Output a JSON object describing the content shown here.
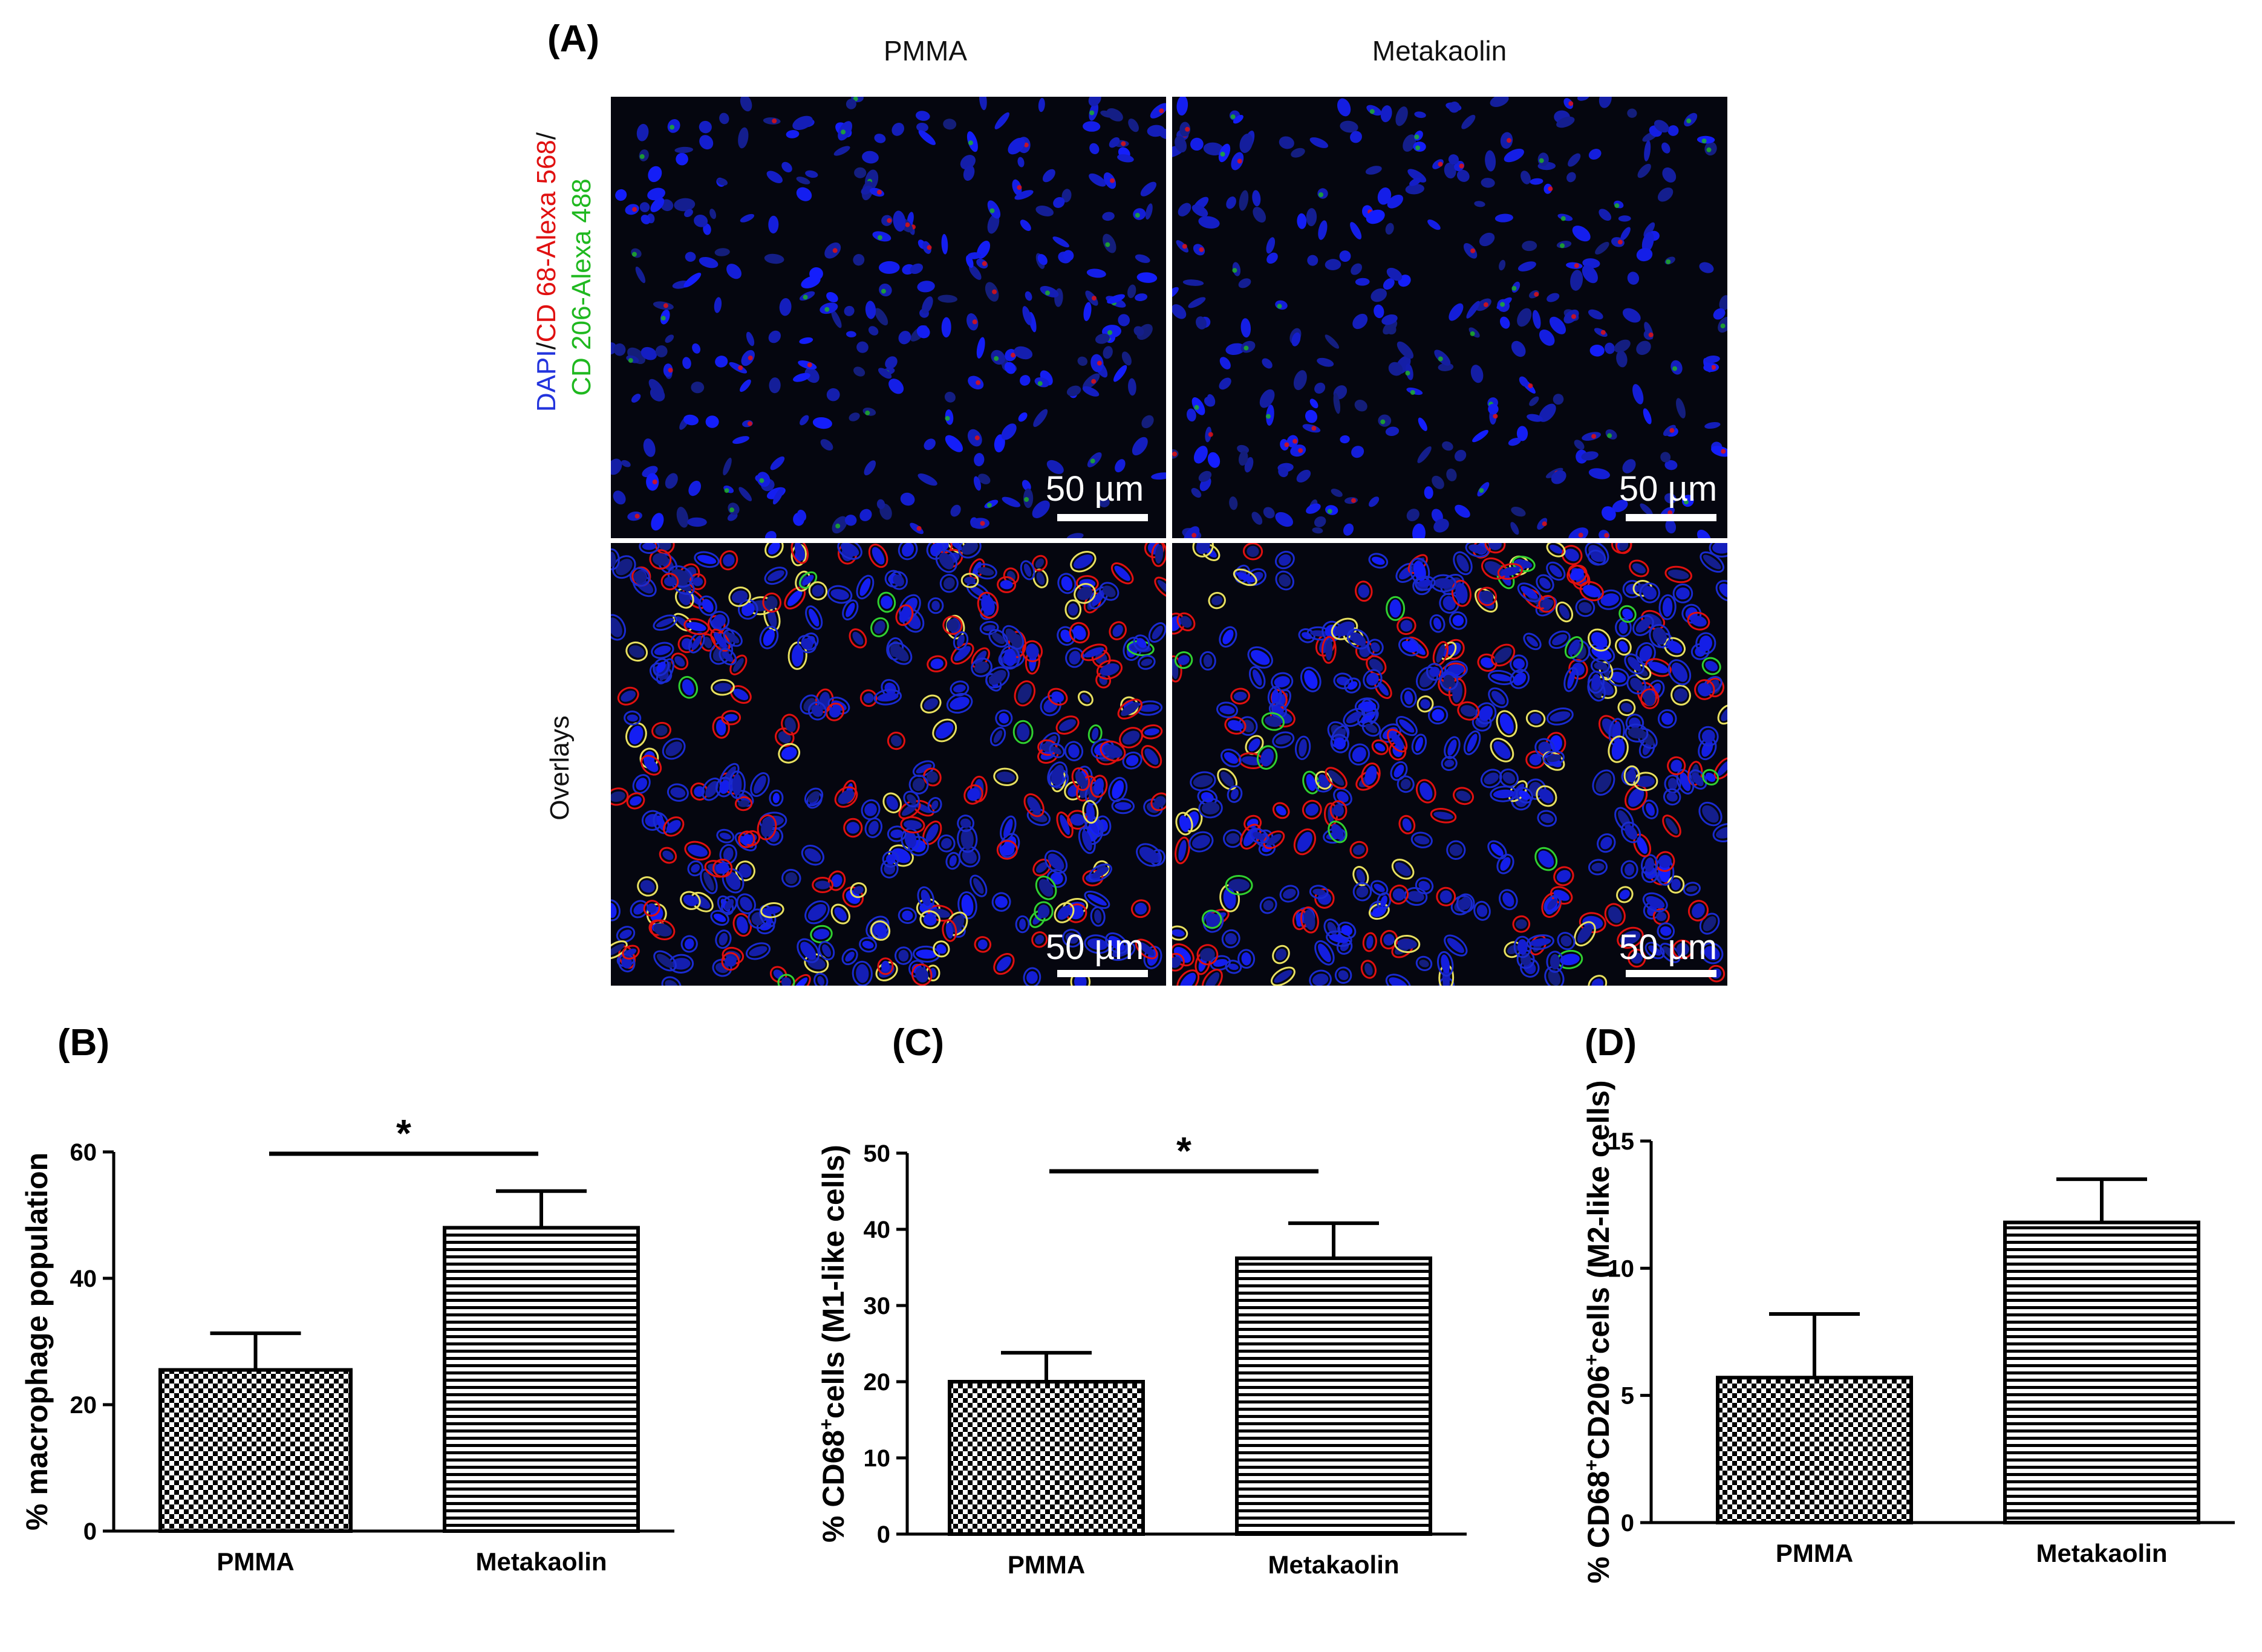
{
  "panel_a": {
    "letter": "(A)",
    "columns": [
      "PMMA",
      "Metakaolin"
    ],
    "row_labels": {
      "dapi": "DAPI",
      "sep1": "/",
      "cd68": "CD 68-Alexa 568",
      "sep2": "/",
      "cd206": "CD 206-Alexa 488",
      "overlays": "Overlays"
    },
    "scale_bar": "50 µm",
    "colors": {
      "dapi": "#2233dd",
      "cd68": "#e01010",
      "cd206": "#1fb81f",
      "overlay_yellow": "#e8e060",
      "overlay_green": "#30d030"
    }
  },
  "chart_data": [
    {
      "type": "bar",
      "panel": "(B)",
      "categories": [
        "PMMA",
        "Metakaolin"
      ],
      "values": [
        25.5,
        48
      ],
      "errors": [
        5.8,
        5.8
      ],
      "patterns": [
        "checkerboard",
        "horizontal-lines"
      ],
      "ylabel": "% macrophage population",
      "ylim": [
        0,
        60
      ],
      "yticks": [
        "0",
        "20",
        "40",
        "60"
      ],
      "significance": "*"
    },
    {
      "type": "bar",
      "panel": "(C)",
      "categories": [
        "PMMA",
        "Metakaolin"
      ],
      "values": [
        20,
        36.2
      ],
      "errors": [
        3.8,
        4.6
      ],
      "patterns": [
        "checkerboard",
        "horizontal-lines"
      ],
      "ylabel": {
        "main": "% CD68",
        "sup": "+",
        "rest": "cells (M1-like cells)"
      },
      "ylim": [
        0,
        50
      ],
      "yticks": [
        "0",
        "10",
        "20",
        "30",
        "40",
        "50"
      ],
      "significance": "*"
    },
    {
      "type": "bar",
      "panel": "(D)",
      "categories": [
        "PMMA",
        "Metakaolin"
      ],
      "values": [
        5.7,
        11.8
      ],
      "errors": [
        2.5,
        1.7
      ],
      "patterns": [
        "checkerboard",
        "horizontal-lines"
      ],
      "ylabel": {
        "main": "% CD68",
        "sup": "+",
        "mid": "CD206",
        "sup2": "+",
        "rest": "cells (M2-like cells)"
      },
      "ylim": [
        0,
        15
      ],
      "yticks": [
        "0",
        "5",
        "10",
        "15"
      ],
      "significance": ""
    }
  ]
}
